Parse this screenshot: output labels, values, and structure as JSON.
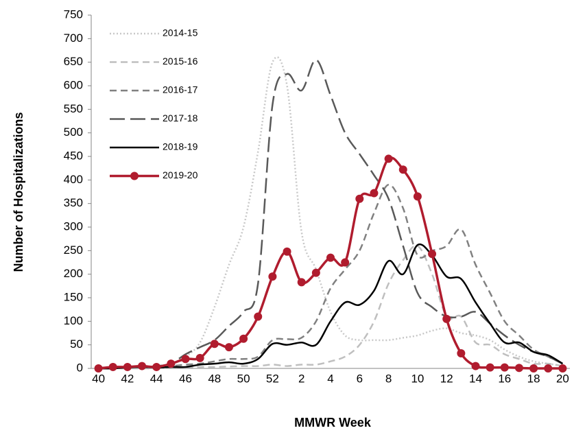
{
  "chart_data": {
    "type": "line",
    "ylabel": "Number of Hospitalizations",
    "xlabel": "MMWR Week",
    "categories": [
      "40",
      null,
      "42",
      null,
      "44",
      null,
      "46",
      null,
      "48",
      null,
      "50",
      null,
      "52",
      null,
      "2",
      null,
      "4",
      null,
      "6",
      null,
      "8",
      null,
      "10",
      null,
      "12",
      null,
      "14",
      null,
      "16",
      null,
      "18",
      null,
      "20"
    ],
    "ylim": [
      0,
      750
    ],
    "yticks": [
      0,
      50,
      100,
      150,
      200,
      250,
      300,
      350,
      400,
      450,
      500,
      550,
      600,
      650,
      700,
      750
    ],
    "grid": false,
    "legend": "upper left",
    "series": [
      {
        "name": "2014-15",
        "color": "#c8c8c8",
        "values": [
          0,
          0,
          2,
          3,
          5,
          10,
          25,
          55,
          130,
          220,
          300,
          460,
          650,
          600,
          290,
          210,
          120,
          70,
          60,
          60,
          60,
          65,
          70,
          80,
          85,
          75,
          70,
          60,
          40,
          25,
          15,
          10,
          5
        ]
      },
      {
        "name": "2015-16",
        "color": "#bfbfbf",
        "values": [
          0,
          0,
          0,
          0,
          0,
          2,
          2,
          3,
          3,
          4,
          5,
          5,
          8,
          5,
          8,
          8,
          15,
          25,
          50,
          100,
          180,
          230,
          260,
          200,
          110,
          110,
          55,
          50,
          30,
          20,
          10,
          10,
          5
        ]
      },
      {
        "name": "2016-17",
        "color": "#808080",
        "values": [
          0,
          0,
          2,
          3,
          4,
          5,
          8,
          10,
          15,
          20,
          20,
          25,
          60,
          62,
          65,
          100,
          170,
          210,
          250,
          330,
          390,
          340,
          240,
          250,
          260,
          295,
          220,
          160,
          100,
          70,
          40,
          25,
          10
        ]
      },
      {
        "name": "2017-18",
        "color": "#595959",
        "values": [
          0,
          0,
          2,
          3,
          5,
          10,
          30,
          45,
          60,
          90,
          120,
          180,
          560,
          625,
          590,
          655,
          580,
          500,
          455,
          410,
          360,
          260,
          160,
          130,
          110,
          110,
          120,
          95,
          70,
          50,
          35,
          25,
          10
        ]
      },
      {
        "name": "2018-19",
        "color": "#000000",
        "values": [
          0,
          0,
          2,
          3,
          2,
          3,
          3,
          8,
          10,
          13,
          10,
          20,
          52,
          50,
          55,
          50,
          100,
          140,
          135,
          165,
          228,
          200,
          262,
          240,
          195,
          190,
          140,
          95,
          55,
          55,
          35,
          28,
          10
        ]
      },
      {
        "name": "2019-20",
        "color": "#b01c2e",
        "marker": "circle",
        "values": [
          0,
          3,
          3,
          5,
          3,
          10,
          20,
          22,
          52,
          45,
          63,
          110,
          195,
          248,
          183,
          203,
          235,
          225,
          360,
          372,
          445,
          422,
          365,
          243,
          105,
          32,
          5,
          2,
          2,
          1,
          0,
          0,
          0
        ]
      }
    ]
  }
}
